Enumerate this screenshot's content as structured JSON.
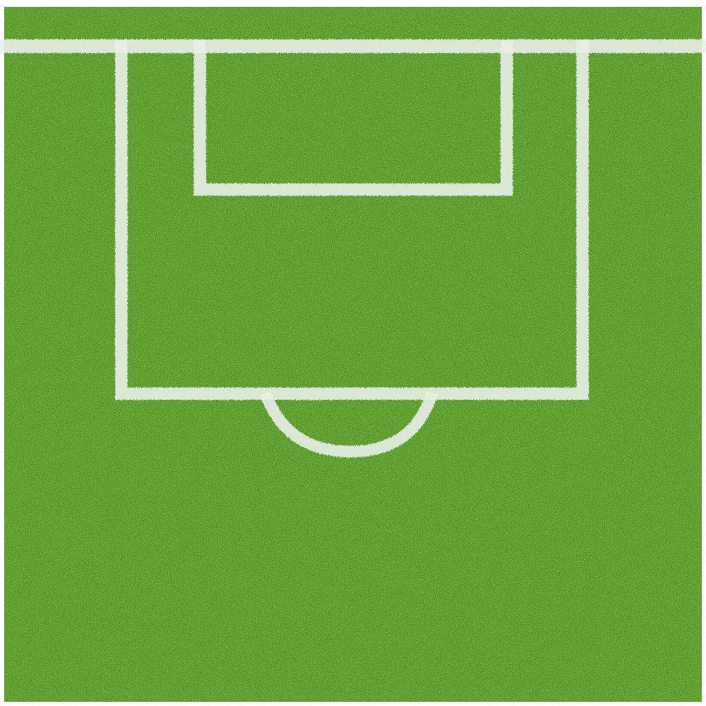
{
  "scene": {
    "subject": "grass-pitch-penalty-area",
    "colors": {
      "frame": "#ffffff",
      "grass_dark": "#2f6f12",
      "grass_mid": "#4f9a1f",
      "grass_light": "#7fc23a",
      "line": "#e8efe6"
    }
  }
}
